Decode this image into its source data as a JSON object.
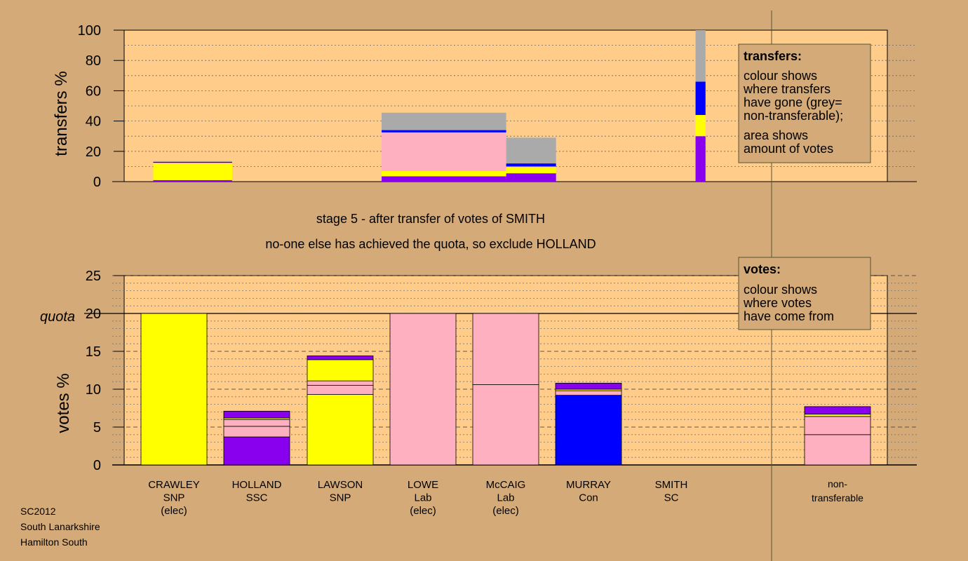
{
  "colors": {
    "background": "#d4aa78",
    "plot_bg": "#ffcc8a",
    "legend_bg": "#d4aa78",
    "SNP": "#ffff00",
    "SSC": "#8800ee",
    "Lab": "#ffb0c0",
    "Con": "#0000ff",
    "SC": "#aaaaaa",
    "non_transferable": "#aaaaaa"
  },
  "stage_text": {
    "line1": "stage 5 - after transfer of votes of SMITH",
    "line2": "no-one else has achieved the quota, so exclude HOLLAND"
  },
  "footer": {
    "line1": "SC2012",
    "line2": "South Lanarkshire",
    "line3": "Hamilton South"
  },
  "transfers_legend": {
    "title": "transfers:",
    "lines": [
      "colour shows",
      "where transfers",
      "have gone (grey=",
      "non-transferable);",
      "area shows",
      "amount of votes"
    ]
  },
  "votes_legend": {
    "title": "votes:",
    "lines": [
      "colour shows",
      "where votes",
      "have come from"
    ]
  },
  "chart_data": [
    {
      "type": "bar",
      "stacked": true,
      "ylabel": "transfers %",
      "ylim": [
        0,
        100
      ],
      "yticks": [
        0,
        20,
        40,
        60,
        80,
        100
      ],
      "note": "variable-width stacked bars; width proportional to votes transferred",
      "bars": [
        {
          "from": "CRAWLEY",
          "x_start": 0.35,
          "x_end": 1.3,
          "segments": [
            {
              "party": "SSC",
              "value": 1
            },
            {
              "party": "SNP",
              "value": 11
            },
            {
              "party": "Lab",
              "value": 0.5
            },
            {
              "party": "Con",
              "value": 0.5
            },
            {
              "party": "SC",
              "value": 0.5
            }
          ]
        },
        {
          "from": "LOWE",
          "x_start": 3.1,
          "x_end": 4.6,
          "segments": [
            {
              "party": "SSC",
              "value": 3.5
            },
            {
              "party": "SNP",
              "value": 3.5
            },
            {
              "party": "Lab",
              "value": 25.5
            },
            {
              "party": "Con",
              "value": 1.5
            },
            {
              "party": "SC",
              "value": 11.5
            }
          ]
        },
        {
          "from": "McCAIG",
          "x_start": 4.6,
          "x_end": 5.2,
          "segments": [
            {
              "party": "SSC",
              "value": 5.5
            },
            {
              "party": "SNP",
              "value": 4
            },
            {
              "party": "Lab",
              "value": 0.5
            },
            {
              "party": "Con",
              "value": 2
            },
            {
              "party": "SC",
              "value": 17
            }
          ]
        },
        {
          "from": "SMITH",
          "x_start": 6.88,
          "x_end": 7.0,
          "segments": [
            {
              "party": "SSC",
              "value": 30
            },
            {
              "party": "SNP",
              "value": 14
            },
            {
              "party": "Con",
              "value": 22
            },
            {
              "party": "SC",
              "value": 34
            }
          ]
        }
      ]
    },
    {
      "type": "bar",
      "stacked": true,
      "ylabel": "votes %",
      "ylim": [
        0,
        25
      ],
      "yticks": [
        0,
        5,
        10,
        15,
        20,
        25
      ],
      "quota": 20,
      "quota_label": "quota",
      "categories": [
        {
          "name": "CRAWLEY",
          "party": "SNP",
          "status": "(elec)"
        },
        {
          "name": "HOLLAND",
          "party": "SSC",
          "status": ""
        },
        {
          "name": "LAWSON",
          "party": "SNP",
          "status": ""
        },
        {
          "name": "LOWE",
          "party": "Lab",
          "status": "(elec)"
        },
        {
          "name": "McCAIG",
          "party": "Lab",
          "status": "(elec)"
        },
        {
          "name": "MURRAY",
          "party": "Con",
          "status": ""
        },
        {
          "name": "SMITH",
          "party": "SC",
          "status": ""
        }
      ],
      "nontransferable_label": "non-\ntransferable",
      "stacks": [
        [
          {
            "party": "SNP",
            "value": 20
          }
        ],
        [
          {
            "party": "SSC",
            "value": 3.7
          },
          {
            "party": "Lab",
            "value": 1.4
          },
          {
            "party": "Lab",
            "value": 0.9
          },
          {
            "party": "SNP",
            "value": 0.2
          },
          {
            "party": "SSC",
            "value": 0.9
          }
        ],
        [
          {
            "party": "SNP",
            "value": 9.3
          },
          {
            "party": "Lab",
            "value": 1.2
          },
          {
            "party": "Lab",
            "value": 0.6
          },
          {
            "party": "SNP",
            "value": 2.8
          },
          {
            "party": "SSC",
            "value": 0.5
          }
        ],
        [
          {
            "party": "Lab",
            "value": 20
          }
        ],
        [
          {
            "party": "Lab",
            "value": 10.6
          },
          {
            "party": "Lab",
            "value": 9.4
          }
        ],
        [
          {
            "party": "Con",
            "value": 9.2
          },
          {
            "party": "Lab",
            "value": 0.6
          },
          {
            "party": "SNP",
            "value": 0.2
          },
          {
            "party": "SSC",
            "value": 0.8
          }
        ],
        [
          {
            "party": "SC",
            "value": 0.0
          }
        ],
        [
          {
            "party": "Lab",
            "value": 4.0
          },
          {
            "party": "Lab",
            "value": 2.4
          },
          {
            "party": "SNP",
            "value": 0.3
          },
          {
            "party": "SSC",
            "value": 1.0
          }
        ]
      ]
    }
  ]
}
